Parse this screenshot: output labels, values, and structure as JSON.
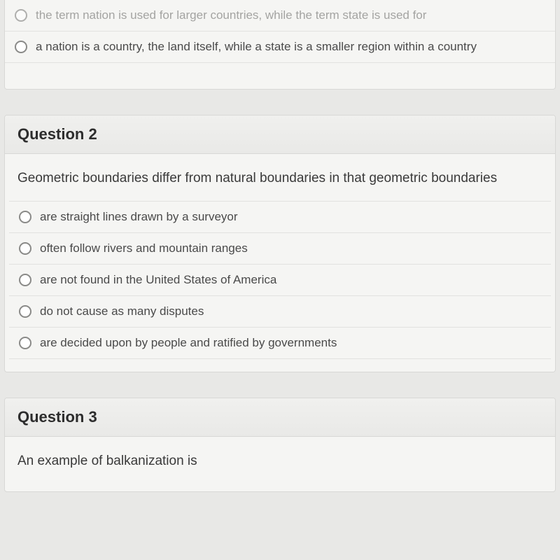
{
  "q1_partial": {
    "options": [
      "the term nation is used for larger countries, while the term state is used for",
      "a nation is a country, the land itself, while a state is a smaller region within a country"
    ]
  },
  "q2": {
    "title": "Question 2",
    "stem": "Geometric boundaries differ from natural boundaries in that geometric boundaries",
    "options": [
      "are straight lines drawn by a surveyor",
      "often follow rivers and mountain ranges",
      "are not found in the United States of America",
      "do not cause as many disputes",
      "are decided upon by people and ratified by governments"
    ]
  },
  "q3": {
    "title": "Question 3",
    "stem": "An example of balkanization is"
  }
}
